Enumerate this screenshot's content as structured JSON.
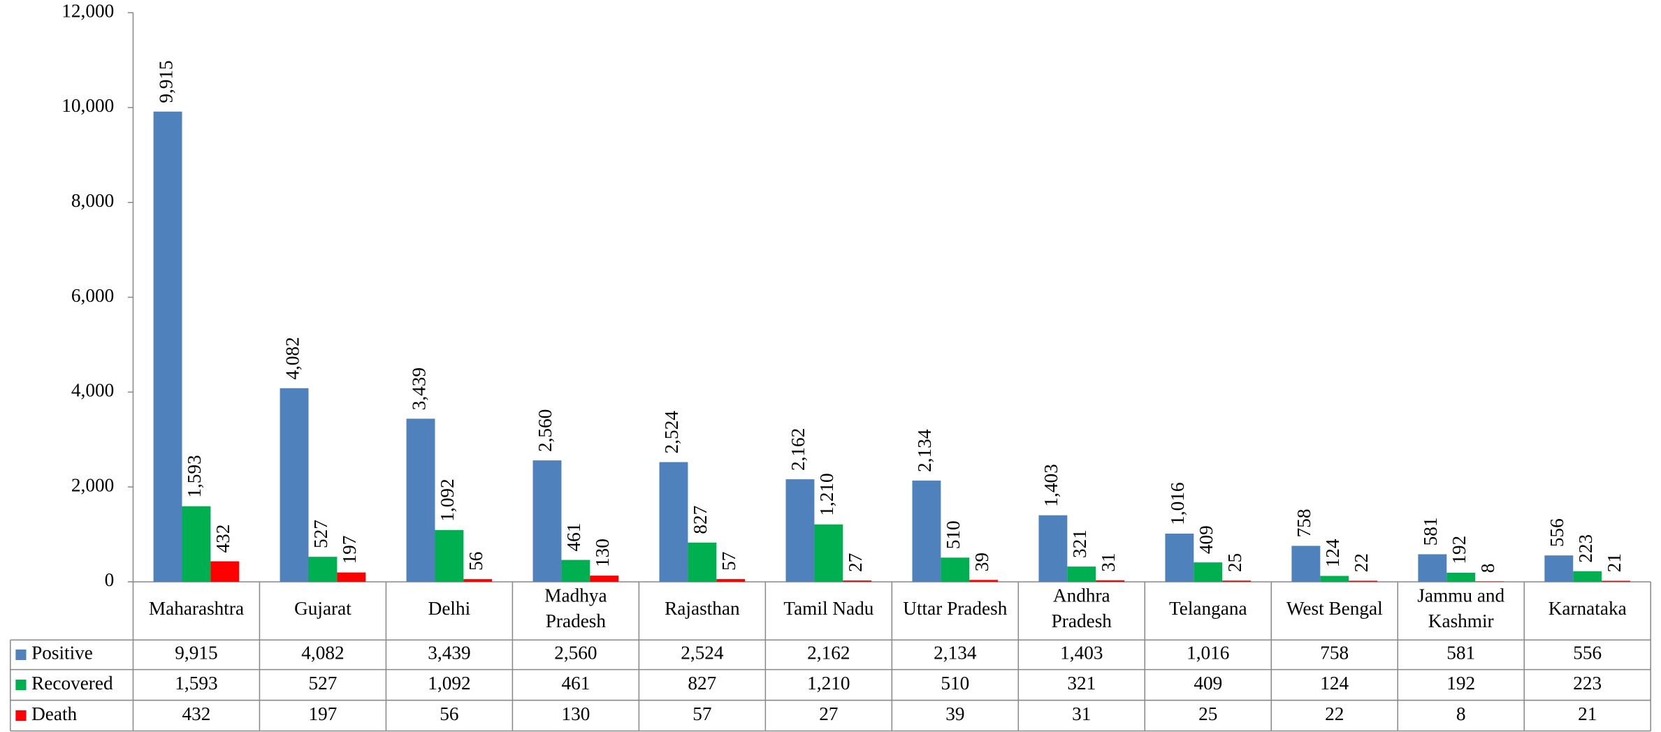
{
  "chart_data": {
    "type": "bar",
    "categories": [
      "Maharashtra",
      "Gujarat",
      "Delhi",
      "Madhya Pradesh",
      "Rajasthan",
      "Tamil Nadu",
      "Uttar Pradesh",
      "Andhra Pradesh",
      "Telangana",
      "West Bengal",
      "Jammu and Kashmir",
      "Karnataka"
    ],
    "series": [
      {
        "name": "Positive",
        "color": "#4f81bd",
        "values": [
          9915,
          4082,
          3439,
          2560,
          2524,
          2162,
          2134,
          1403,
          1016,
          758,
          581,
          556
        ],
        "value_labels": [
          "9,915",
          "4,082",
          "3,439",
          "2,560",
          "2,524",
          "2,162",
          "2,134",
          "1,403",
          "1,016",
          "758",
          "581",
          "556"
        ]
      },
      {
        "name": "Recovered",
        "color": "#00b050",
        "values": [
          1593,
          527,
          1092,
          461,
          827,
          1210,
          510,
          321,
          409,
          124,
          192,
          223
        ],
        "value_labels": [
          "1,593",
          "527",
          "1,092",
          "461",
          "827",
          "1,210",
          "510",
          "321",
          "409",
          "124",
          "192",
          "223"
        ]
      },
      {
        "name": "Death",
        "color": "#ff0000",
        "values": [
          432,
          197,
          56,
          130,
          57,
          27,
          39,
          31,
          25,
          22,
          8,
          21
        ],
        "value_labels": [
          "432",
          "197",
          "56",
          "130",
          "57",
          "27",
          "39",
          "31",
          "25",
          "22",
          "8",
          "21"
        ]
      }
    ],
    "ylim": [
      0,
      12000
    ],
    "yticks": [
      0,
      {
        "value": 2000,
        "label": "2,000"
      },
      {
        "value": 4000,
        "label": "4,000"
      },
      {
        "value": 6000,
        "label": "6,000"
      },
      {
        "value": 8000,
        "label": "8,000"
      },
      {
        "value": 10000,
        "label": "10,000"
      },
      {
        "value": 12000,
        "label": "12,000"
      }
    ],
    "grid": false
  }
}
